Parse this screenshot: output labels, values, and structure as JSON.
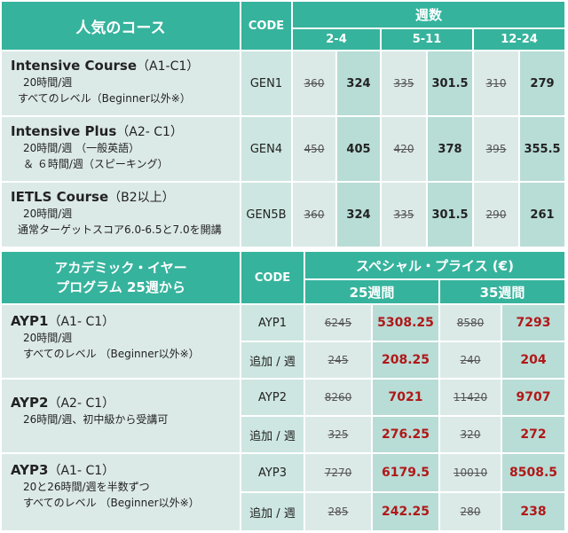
{
  "table1": {
    "header_course": "人気のコース",
    "header_code": "CODE",
    "header_weeks": "週数",
    "week_ranges": [
      "2-4",
      "5-11",
      "12-24"
    ],
    "rows": [
      {
        "name": "Intensive Course",
        "level": "（A1-C1）",
        "desc": [
          "20時間/週",
          "すべてのレベル（Beginner以外※）"
        ],
        "code": "GEN1",
        "prices": [
          {
            "old": "360",
            "new": "324"
          },
          {
            "old": "335",
            "new": "301.5"
          },
          {
            "old": "310",
            "new": "279"
          }
        ]
      },
      {
        "name": "Intensive Plus",
        "level": "（A2- C1）",
        "desc": [
          "20時間/週 （一般英語）",
          "＆ ６時間/週（スピーキング）"
        ],
        "code": "GEN4",
        "prices": [
          {
            "old": "450",
            "new": "405"
          },
          {
            "old": "420",
            "new": "378"
          },
          {
            "old": "395",
            "new": "355.5"
          }
        ]
      },
      {
        "name": "IETLS Course",
        "level": "（B2以上）",
        "desc": [
          "20時間/週",
          "通常ターゲットスコア6.0-6.5と7.0を開講"
        ],
        "code": "GEN5B",
        "prices": [
          {
            "old": "360",
            "new": "324"
          },
          {
            "old": "335",
            "new": "301.5"
          },
          {
            "old": "290",
            "new": "261"
          }
        ]
      }
    ]
  },
  "table2": {
    "header_program_line1": "アカデミック・イヤー",
    "header_program_line2": "プログラム 25週から",
    "header_code": "CODE",
    "header_special": "スペシャル・プライス (€)",
    "week_cols": [
      "25週間",
      "35週間"
    ],
    "programs": [
      {
        "name": "AYP1",
        "level": "（A1- C1）",
        "desc": [
          "20時間/週",
          "すべてのレベル （Beginner以外※）"
        ],
        "rows": [
          {
            "code": "AYP1",
            "old25": "6245",
            "new25": "5308.25",
            "old35": "8580",
            "new35": "7293"
          },
          {
            "code": "追加 / 週",
            "old25": "245",
            "new25": "208.25",
            "old35": "240",
            "new35": "204"
          }
        ]
      },
      {
        "name": "AYP2",
        "level": "（A2- C1）",
        "desc": [
          "26時間/週、初中級から受講可"
        ],
        "rows": [
          {
            "code": "AYP2",
            "old25": "8260",
            "new25": "7021",
            "old35": "11420",
            "new35": "9707"
          },
          {
            "code": "追加 / 週",
            "old25": "325",
            "new25": "276.25",
            "old35": "320",
            "new35": "272"
          }
        ]
      },
      {
        "name": "AYP3",
        "level": "（A1- C1）",
        "desc": [
          "20と26時間/週を半数ずつ",
          "すべてのレベル （Beginner以外※）"
        ],
        "rows": [
          {
            "code": "AYP3",
            "old25": "7270",
            "new25": "6179.5",
            "old35": "10010",
            "new35": "8508.5"
          },
          {
            "code": "追加 / 週",
            "old25": "285",
            "new25": "242.25",
            "old35": "280",
            "new35": "238"
          }
        ]
      }
    ]
  },
  "colors": {
    "header": "#36b39d",
    "row_light": "#dceae7",
    "row_mid": "#cde6e1",
    "row_dark": "#b8dcd6",
    "special_red": "#b01818"
  }
}
